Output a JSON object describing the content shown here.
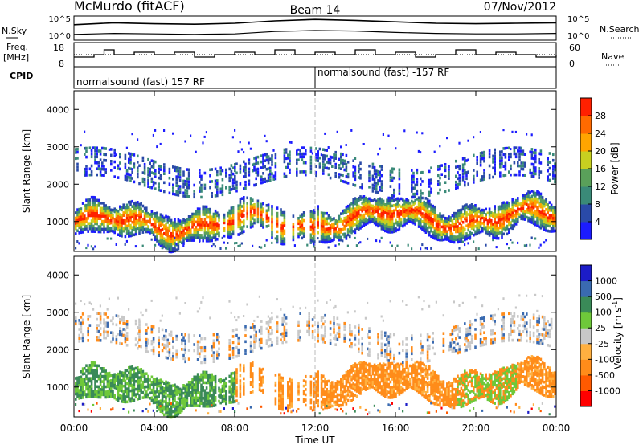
{
  "header": {
    "station": "McMurdo (fitACF)",
    "beam": "Beam 14",
    "date": "07/Nov/2012"
  },
  "strip_labels": {
    "nsky": "N.Sky",
    "nsearch": "N.Search",
    "freq_line1": "Freq.",
    "freq_line2": "[MHz]",
    "nave": "Nave",
    "cpid": "CPID",
    "noise_top": "10^5",
    "noise_bottom": "10^0",
    "freq_top": "18",
    "freq_bottom": "8",
    "nave_top": "60",
    "nave_bottom": "0"
  },
  "cpid": {
    "segment1": "normalsound (fast) 157 RF",
    "segment2": "normalsound (fast) -157 RF"
  },
  "x_axis": {
    "label": "Time UT",
    "ticks": [
      "00:00",
      "04:00",
      "08:00",
      "12:00",
      "16:00",
      "20:00",
      "00:00"
    ],
    "range_hours": [
      0,
      24
    ]
  },
  "colors": {
    "power_scale": [
      "#1c1cff",
      "#2a4aa8",
      "#3a8a78",
      "#5aa05a",
      "#c8d020",
      "#ffa500",
      "#ff6a00",
      "#ff2000"
    ],
    "velocity_scale": [
      "#ff0000",
      "#ff5a00",
      "#ff8c1a",
      "#ffb040",
      "#c8c8c8",
      "#6ec83a",
      "#3a8a58",
      "#3a6ab0",
      "#1c1cc8"
    ]
  },
  "chart_data": [
    {
      "type": "line",
      "panel": "noise",
      "series": [
        {
          "name": "N.Sky",
          "x": [
            0,
            2,
            4,
            6,
            8,
            10,
            12,
            14,
            16,
            18,
            20,
            22,
            24
          ],
          "values": [
            3.2,
            3.6,
            3.4,
            3.3,
            3.5,
            4.0,
            4.3,
            4.1,
            3.8,
            3.5,
            3.4,
            3.5,
            3.6
          ]
        },
        {
          "name": "N.Search",
          "x": [
            0,
            2,
            4,
            6,
            8,
            10,
            12,
            14,
            16,
            18,
            20,
            22,
            24
          ],
          "values": [
            1.2,
            1.4,
            1.3,
            1.2,
            1.3,
            1.8,
            2.0,
            1.9,
            1.6,
            1.4,
            1.3,
            1.3,
            1.4
          ]
        }
      ],
      "ylim": [
        0,
        5
      ]
    },
    {
      "type": "line",
      "panel": "frequency_nave",
      "series": [
        {
          "name": "Freq. [MHz]",
          "x": [
            0,
            1,
            1.5,
            2,
            3,
            4,
            5,
            6,
            7,
            8,
            9,
            10,
            11,
            12,
            13,
            14,
            15,
            16,
            17,
            18,
            19,
            20,
            21,
            22,
            23,
            24
          ],
          "values": [
            12,
            13,
            15,
            13,
            14,
            13,
            14,
            12,
            13,
            14,
            13,
            15,
            13,
            14,
            13,
            15,
            13,
            14,
            12,
            13,
            15,
            13,
            14,
            13,
            12,
            13
          ]
        },
        {
          "name": "Nave",
          "x": [
            0,
            6,
            12,
            18,
            24
          ],
          "values": [
            30,
            30,
            30,
            30,
            30
          ]
        }
      ],
      "ylim_freq": [
        8,
        18
      ],
      "ylim_nave": [
        0,
        60
      ]
    },
    {
      "type": "heatmap",
      "panel": "power",
      "ylabel": "Slant Range [km]",
      "xlabel": "Time UT",
      "yticks": [
        1000,
        2000,
        3000,
        4000
      ],
      "ylim": [
        200,
        4500
      ],
      "xlim": [
        0,
        24
      ],
      "colorbar": {
        "label": "Power [dB]",
        "ticks": [
          4,
          8,
          12,
          16,
          20,
          24,
          28
        ],
        "range": [
          0,
          30
        ]
      }
    },
    {
      "type": "heatmap",
      "panel": "velocity",
      "ylabel": "Slant Range [km]",
      "xlabel": "Time UT",
      "yticks": [
        1000,
        2000,
        3000,
        4000
      ],
      "ylim": [
        200,
        4500
      ],
      "xlim": [
        0,
        24
      ],
      "colorbar": {
        "label": "Velocity [m s-1]",
        "ticks": [
          1000,
          500,
          100,
          25,
          -25,
          -100,
          -500,
          -1000
        ]
      }
    }
  ]
}
